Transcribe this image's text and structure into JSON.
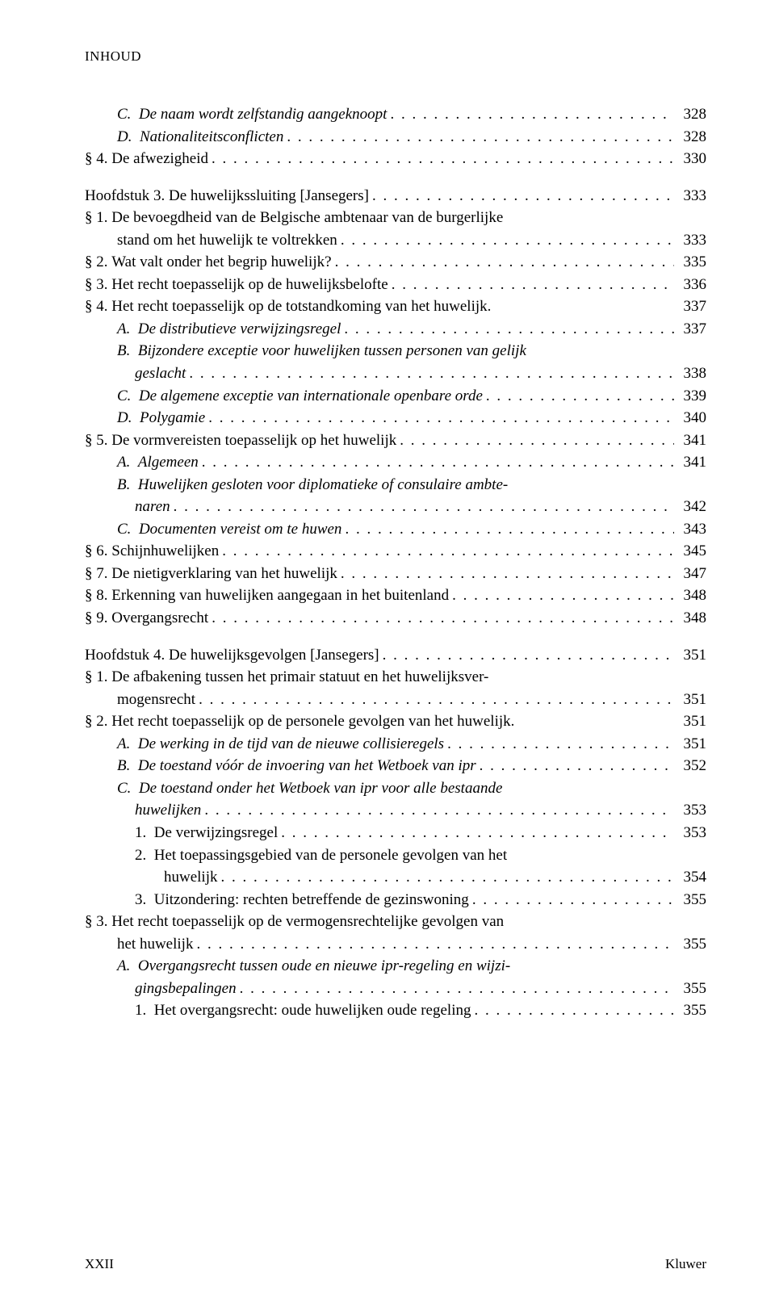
{
  "running_head": "INHOUD",
  "leader_dots": ". . . . . . . . . . . . . . . . . . . . . . . . . . . . . . . . . . . . . . . . . . . . . . . . . . . . . . . . . . . . . . . . . . . . . . . . . . . . . . . . . . . .",
  "footer_left": "XXII",
  "footer_right": "Kluwer",
  "entries": [
    {
      "indent": "indent-0b",
      "label": "C.  ",
      "text": "De naam wordt zelfstandig aangeknoopt",
      "page": "328",
      "italic": true
    },
    {
      "indent": "indent-0b",
      "label": "D.  ",
      "text": "Nationaliteitsconflicten",
      "page": "328",
      "italic": true
    },
    {
      "indent": "indent-0",
      "label": "§ 4. ",
      "text": "De afwezigheid",
      "page": "330",
      "italic": false
    },
    {
      "indent": "indent-0",
      "label": "",
      "text": "Hoofdstuk 3. De huwelijkssluiting [Jansegers]",
      "page": "333",
      "italic": false,
      "gap": true
    },
    {
      "indent": "indent-0",
      "label": "§ 1. ",
      "text": "De bevoegdheid van de Belgische ambtenaar van de burgerlijke",
      "page": "",
      "italic": false
    },
    {
      "indent": "indent-0b",
      "label": "",
      "text": "stand om het huwelijk te voltrekken",
      "page": "333",
      "italic": false
    },
    {
      "indent": "indent-0",
      "label": "§ 2. ",
      "text": "Wat valt onder het begrip huwelijk?",
      "page": "335",
      "italic": false
    },
    {
      "indent": "indent-0",
      "label": "§ 3. ",
      "text": "Het recht toepasselijk op de huwelijksbelofte",
      "page": "336",
      "italic": false
    },
    {
      "indent": "indent-0",
      "label": "§ 4. ",
      "text": "Het recht toepasselijk op de totstandkoming van het huwelijk",
      "page": "337",
      "italic": false,
      "tight": true
    },
    {
      "indent": "indent-0b",
      "label": "A.  ",
      "text": "De distributieve verwijzingsregel",
      "page": "337",
      "italic": true
    },
    {
      "indent": "indent-0b",
      "label": "B.  ",
      "text": "Bijzondere exceptie voor huwelijken tussen personen van gelijk",
      "page": "",
      "italic": true
    },
    {
      "indent": "indent-2",
      "label": "",
      "text": "geslacht",
      "page": "338",
      "italic": true
    },
    {
      "indent": "indent-0b",
      "label": "C.  ",
      "text": "De algemene exceptie van internationale openbare orde",
      "page": "339",
      "italic": true
    },
    {
      "indent": "indent-0b",
      "label": "D.  ",
      "text": "Polygamie",
      "page": "340",
      "italic": true
    },
    {
      "indent": "indent-0",
      "label": "§ 5. ",
      "text": "De vormvereisten toepasselijk op het huwelijk",
      "page": "341",
      "italic": false
    },
    {
      "indent": "indent-0b",
      "label": "A.  ",
      "text": "Algemeen",
      "page": "341",
      "italic": true
    },
    {
      "indent": "indent-0b",
      "label": "B.  ",
      "text": "Huwelijken gesloten voor diplomatieke of consulaire ambte-",
      "page": "",
      "italic": true
    },
    {
      "indent": "indent-2",
      "label": "",
      "text": "naren",
      "page": "342",
      "italic": true
    },
    {
      "indent": "indent-0b",
      "label": "C.  ",
      "text": "Documenten vereist om te huwen",
      "page": "343",
      "italic": true
    },
    {
      "indent": "indent-0",
      "label": "§ 6. ",
      "text": "Schijnhuwelijken",
      "page": "345",
      "italic": false
    },
    {
      "indent": "indent-0",
      "label": "§ 7. ",
      "text": "De nietigverklaring van het huwelijk",
      "page": "347",
      "italic": false
    },
    {
      "indent": "indent-0",
      "label": "§ 8. ",
      "text": "Erkenning van huwelijken aangegaan in het buitenland",
      "page": "348",
      "italic": false
    },
    {
      "indent": "indent-0",
      "label": "§ 9. ",
      "text": "Overgangsrecht",
      "page": "348",
      "italic": false
    },
    {
      "indent": "indent-0",
      "label": "",
      "text": "Hoofdstuk 4. De huwelijksgevolgen [Jansegers]",
      "page": "351",
      "italic": false,
      "gap": true
    },
    {
      "indent": "indent-0",
      "label": "§ 1. ",
      "text": "De afbakening tussen het primair statuut en het huwelijksver-",
      "page": "",
      "italic": false
    },
    {
      "indent": "indent-0b",
      "label": "",
      "text": "mogensrecht",
      "page": "351",
      "italic": false
    },
    {
      "indent": "indent-0",
      "label": "§ 2. ",
      "text": "Het recht toepasselijk op de personele gevolgen van het huwelijk",
      "page": "351",
      "italic": false,
      "tight": true
    },
    {
      "indent": "indent-0b",
      "label": "A.  ",
      "text": "De werking in de tijd van de nieuwe collisieregels",
      "page": "351",
      "italic": true
    },
    {
      "indent": "indent-0b",
      "label": "B.  ",
      "text": "De toestand vóór de invoering van het Wetboek van ipr",
      "page": "352",
      "italic": true
    },
    {
      "indent": "indent-0b",
      "label": "C.  ",
      "text": "De toestand onder het Wetboek van ipr voor alle bestaande",
      "page": "",
      "italic": true
    },
    {
      "indent": "indent-2",
      "label": "",
      "text": "huwelijken",
      "page": "353",
      "italic": true
    },
    {
      "indent": "indent-2",
      "label": "1.  ",
      "text": "De verwijzingsregel",
      "page": "353",
      "italic": false
    },
    {
      "indent": "indent-2",
      "label": "2.  ",
      "text": "Het toepassingsgebied van de personele gevolgen van het",
      "page": "",
      "italic": false
    },
    {
      "indent": "indent-3",
      "label": "",
      "text": "huwelijk",
      "page": "354",
      "italic": false
    },
    {
      "indent": "indent-2",
      "label": "3.  ",
      "text": "Uitzondering: rechten betreffende de gezinswoning",
      "page": "355",
      "italic": false
    },
    {
      "indent": "indent-0",
      "label": "§ 3. ",
      "text": "Het recht toepasselijk op de vermogensrechtelijke gevolgen van",
      "page": "",
      "italic": false
    },
    {
      "indent": "indent-0b",
      "label": "",
      "text": "het huwelijk",
      "page": "355",
      "italic": false
    },
    {
      "indent": "indent-0b",
      "label": "A.  ",
      "text": "Overgangsrecht tussen oude en nieuwe ipr-regeling en wijzi-",
      "page": "",
      "italic": true
    },
    {
      "indent": "indent-2",
      "label": "",
      "text": "gingsbepalingen",
      "page": "355",
      "italic": true
    },
    {
      "indent": "indent-2",
      "label": "1.  ",
      "text": "Het overgangsrecht: oude huwelijken oude regeling",
      "page": "355",
      "italic": false
    }
  ]
}
